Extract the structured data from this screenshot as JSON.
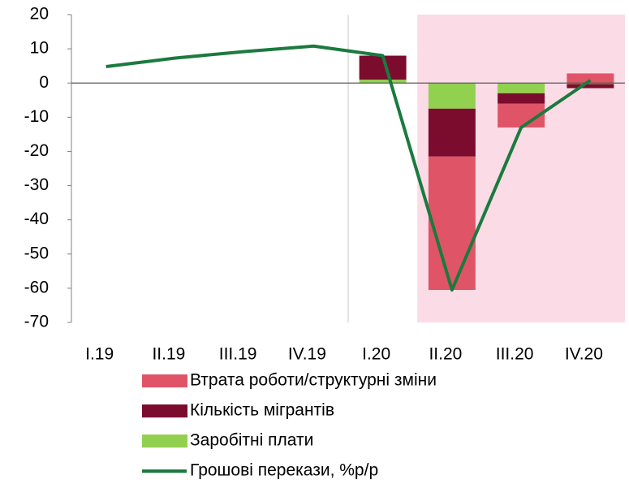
{
  "chart_data": {
    "type": "bar",
    "categories": [
      "I.19",
      "II.19",
      "III.19",
      "IV.19",
      "I.20",
      "II.20",
      "III.20",
      "IV.20"
    ],
    "series": [
      {
        "name": "Заробітні плати",
        "color": "#92d050",
        "values": [
          null,
          null,
          null,
          null,
          1,
          -7.5,
          -3,
          -0.3
        ]
      },
      {
        "name": "Кількість мігрантів",
        "color": "#7b0c2e",
        "values": [
          null,
          null,
          null,
          null,
          7,
          -14,
          -3,
          -1.2
        ]
      },
      {
        "name": "Втрата роботи/структурні зміни",
        "color": "#e05468",
        "values": [
          null,
          null,
          null,
          null,
          0,
          -39,
          -7,
          2.8
        ]
      },
      {
        "name": "Грошові перекази, %р/р",
        "color": "#1b7a3e",
        "type": "line",
        "values": [
          4.8,
          7.3,
          9.2,
          10.8,
          8,
          -60.5,
          -13,
          0.8
        ]
      }
    ],
    "legend_order": [
      2,
      1,
      0,
      3
    ],
    "ylim": [
      -70,
      20
    ],
    "yticks": [
      -70,
      -60,
      -50,
      -40,
      -30,
      -20,
      -10,
      0,
      10,
      20
    ],
    "grid": false
  }
}
